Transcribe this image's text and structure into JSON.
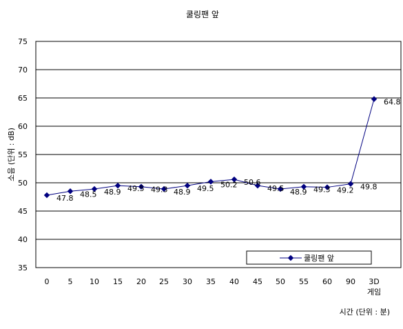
{
  "chart_data": {
    "type": "line",
    "title": "쿨링팬 앞",
    "xlabel": "시간 (단위 : 분)",
    "ylabel": "소음 (단위 : dB)",
    "categories": [
      "0",
      "5",
      "10",
      "15",
      "20",
      "25",
      "30",
      "35",
      "40",
      "45",
      "50",
      "55",
      "60",
      "90",
      "3D\n게임"
    ],
    "series": [
      {
        "name": "쿨링팬 앞",
        "values": [
          47.8,
          48.5,
          48.9,
          49.5,
          49.3,
          48.9,
          49.5,
          50.2,
          50.6,
          49.5,
          48.9,
          49.3,
          49.2,
          49.8,
          64.8
        ],
        "labels": [
          "47.8",
          "48.5",
          "48.9",
          "49.5",
          "49.3",
          "48.9",
          "49.5",
          "50.2",
          "50.6",
          "49.5",
          "48.9",
          "49.3",
          "49.2",
          "49.8",
          "64.8"
        ]
      }
    ],
    "ylim": [
      35,
      75
    ],
    "yticks": [
      "35",
      "40",
      "45",
      "50",
      "55",
      "60",
      "65",
      "70",
      "75"
    ],
    "grid": true,
    "legend_position": "bottom-right",
    "colors": {
      "series": "#000080",
      "grid": "#000000",
      "background": "#ffffff"
    }
  }
}
